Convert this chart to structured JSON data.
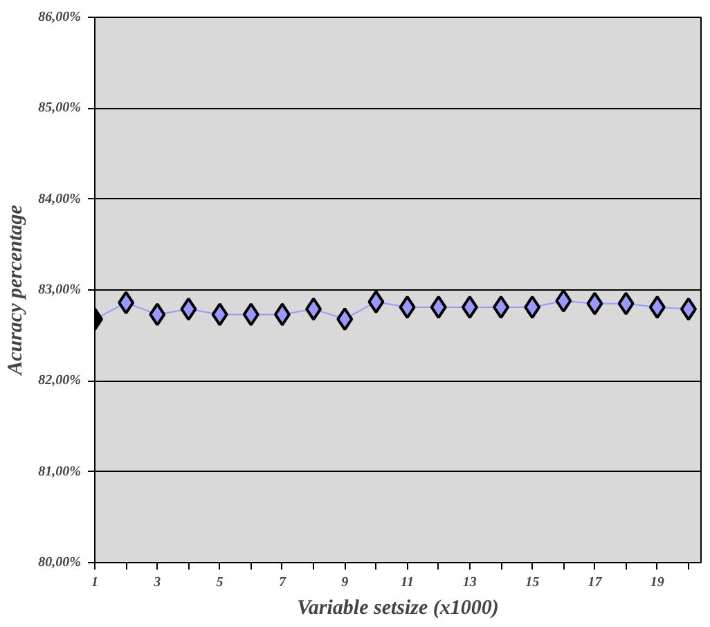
{
  "chart_data": {
    "type": "line",
    "xlabel": "Variable setsize (x1000)",
    "ylabel": "Acuracy percentage",
    "x": [
      1,
      2,
      3,
      4,
      5,
      6,
      7,
      8,
      9,
      10,
      11,
      12,
      13,
      14,
      15,
      16,
      17,
      18,
      19,
      20
    ],
    "series": [
      {
        "color": "#9999ff",
        "colors": [
          "#000000",
          "#9999ff",
          "#9999ff",
          "#9999ff",
          "#9999ff",
          "#9999ff",
          "#9999ff",
          "#9999ff",
          "#9999ff",
          "#9999ff",
          "#9999ff",
          "#9999ff",
          "#9999ff",
          "#9999ff",
          "#9999ff",
          "#9999ff",
          "#9999ff",
          "#9999ff",
          "#9999ff",
          "#9999ff"
        ],
        "values": [
          82.68,
          82.86,
          82.73,
          82.79,
          82.73,
          82.73,
          82.73,
          82.79,
          82.68,
          82.87,
          82.81,
          82.81,
          82.81,
          82.81,
          82.81,
          82.88,
          82.85,
          82.85,
          82.81,
          82.79
        ]
      }
    ],
    "xlim": [
      1,
      20.4
    ],
    "xticks": [
      1,
      {
        "value": 2,
        "label": null
      },
      3,
      {
        "value": 4,
        "label": null
      },
      5,
      {
        "value": 6,
        "label": null
      },
      7,
      {
        "value": 8,
        "label": null
      },
      9,
      {
        "value": 10,
        "label": null
      },
      11,
      {
        "value": 12,
        "label": null
      },
      13,
      {
        "value": 14,
        "label": null
      },
      15,
      {
        "value": 16,
        "label": null
      },
      17,
      {
        "value": 18,
        "label": null
      },
      19,
      {
        "value": 20,
        "label": null
      }
    ],
    "ylim": [
      80,
      86
    ],
    "yticks": [
      {
        "value": 80,
        "label": "80,00%"
      },
      {
        "value": 81,
        "label": "81,00%"
      },
      {
        "value": 82,
        "label": "82,00%"
      },
      {
        "value": 83,
        "label": "83,00%"
      },
      {
        "value": 84,
        "label": "84,00%"
      },
      {
        "value": 85,
        "label": "85,00%"
      },
      {
        "value": 86,
        "label": "86,00%"
      }
    ],
    "grid": "y",
    "marker": "diamond",
    "line_style": "solid"
  }
}
